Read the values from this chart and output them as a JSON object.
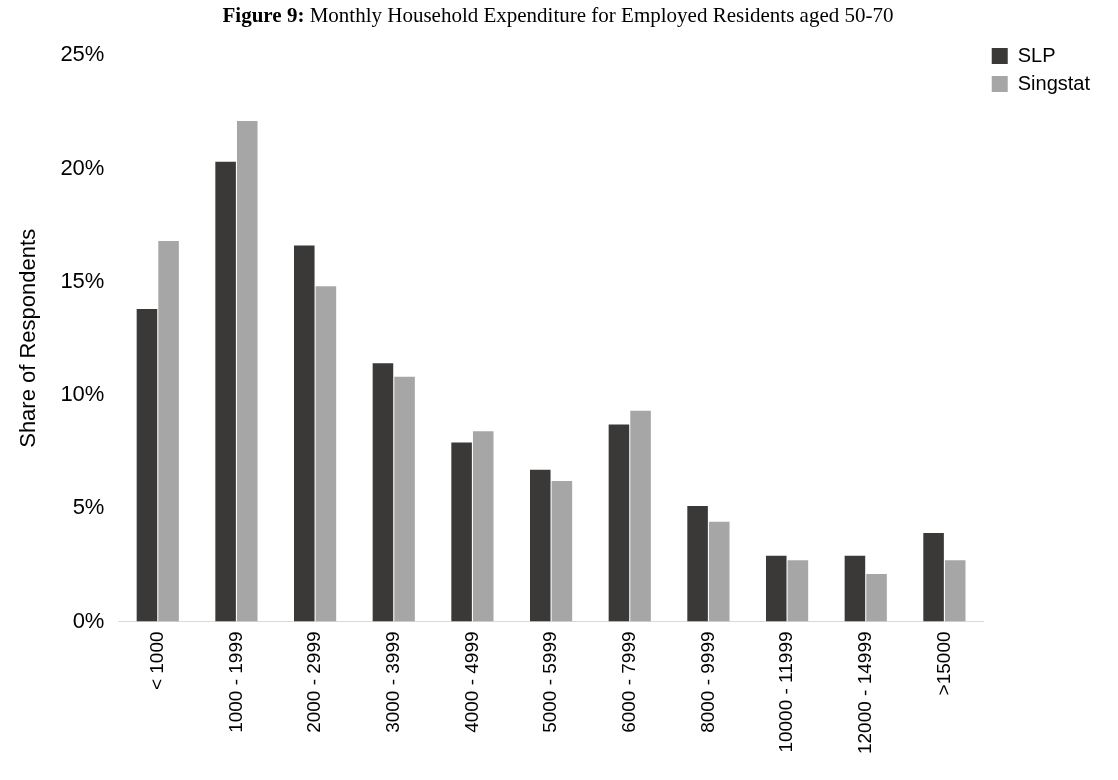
{
  "chart_data": {
    "type": "bar",
    "title": "Figure 9: Monthly Household Expenditure for Employed Residents aged 50-70",
    "ylabel": "Share of Respondents",
    "categories": [
      "< 1000",
      "1000 - 1999",
      "2000 - 2999",
      "3000 - 3999",
      "4000 - 4999",
      "5000 - 5999",
      "6000 - 7999",
      "8000 - 9999",
      "10000 - 11999",
      "12000 - 14999",
      ">15000"
    ],
    "series": [
      {
        "name": "SLP",
        "color": "#3a3938",
        "values": [
          13.8,
          20.3,
          16.6,
          11.4,
          7.9,
          6.7,
          8.7,
          5.1,
          2.9,
          2.9,
          3.9
        ]
      },
      {
        "name": "Singstat",
        "color": "#a6a6a6",
        "values": [
          16.8,
          22.1,
          14.8,
          10.8,
          8.4,
          6.2,
          9.3,
          4.4,
          2.7,
          2.1,
          2.7
        ]
      }
    ],
    "ylim": [
      0,
      25
    ],
    "yticks": [
      {
        "value": 0,
        "label": "0%"
      },
      {
        "value": 5,
        "label": "5%"
      },
      {
        "value": 10,
        "label": "10%"
      },
      {
        "value": 15,
        "label": "15%"
      },
      {
        "value": 20,
        "label": "20%"
      },
      {
        "value": 25,
        "label": "25%"
      }
    ],
    "grid": false,
    "legend": "top right"
  }
}
